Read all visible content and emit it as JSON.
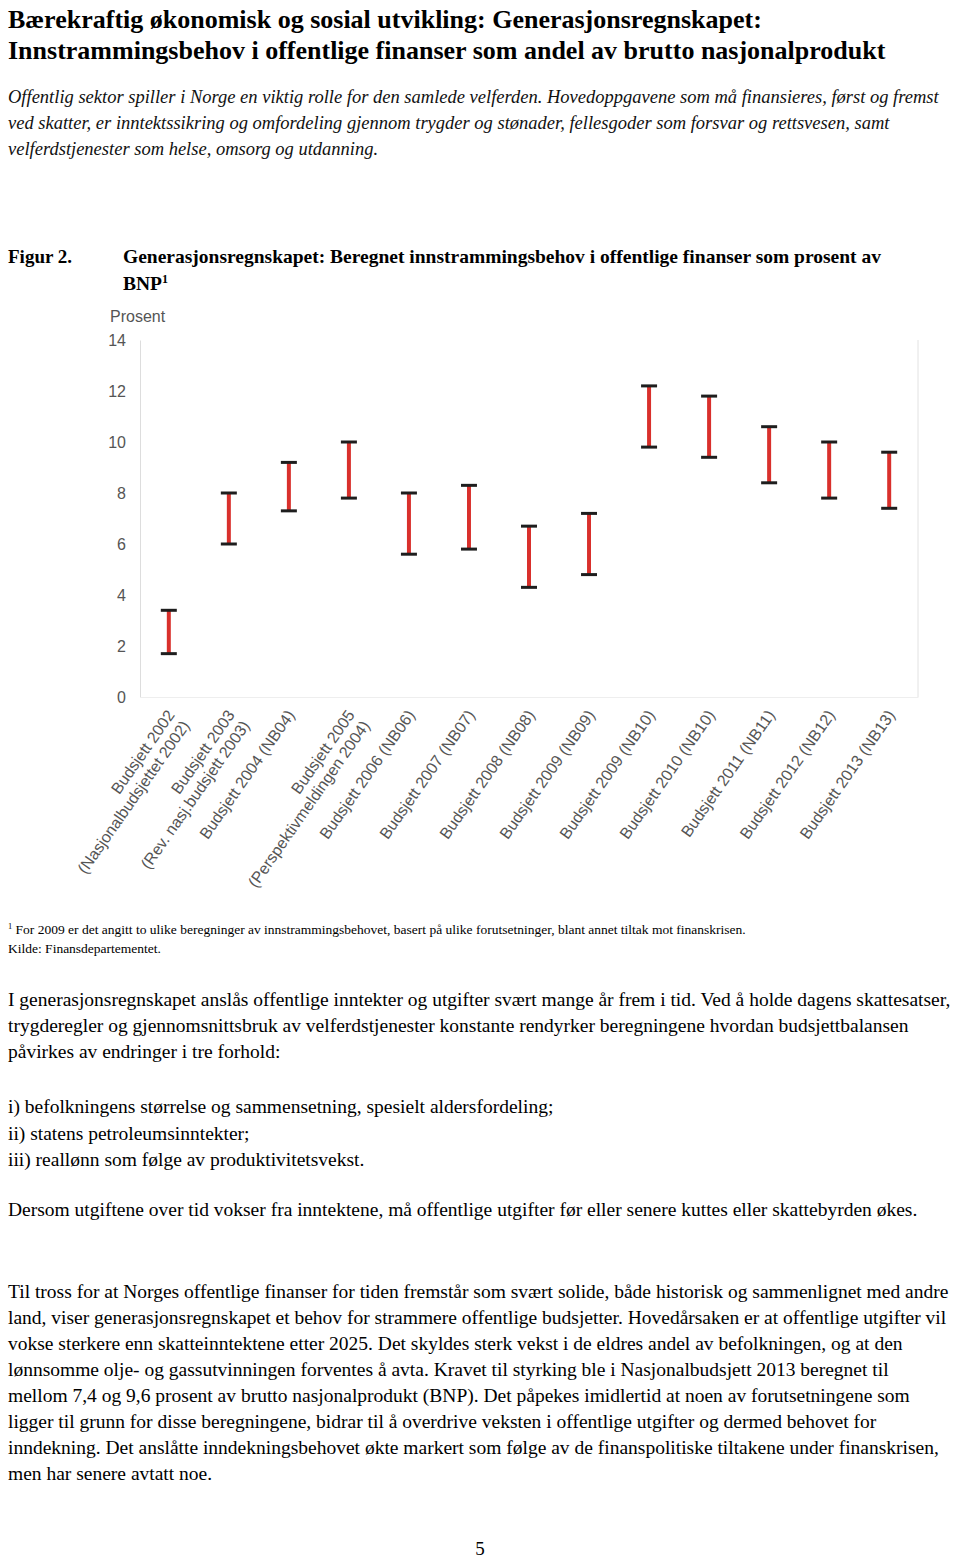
{
  "document": {
    "heading": "Bærekraftig økonomisk og sosial utvikling: Generasjonsregnskapet: Innstrammingsbehov i offentlige finanser som andel av brutto nasjonalprodukt",
    "intro": "Offentlig sektor spiller i Norge en viktig rolle for den samlede velferden. Hovedoppgavene som må finansieres, først og fremst ved skatter, er inntektssikring og omfordeling gjennom trygder og stønader, fellesgoder som forsvar og rettsvesen, samt velferdstjenester som helse, omsorg og utdanning.",
    "figure_label": "Figur 2.",
    "footnote_marker": "1",
    "footnote": "For 2009 er det angitt to ulike beregninger av innstrammingsbehovet, basert på ulike forutsetninger, blant annet tiltak mot finanskrisen.",
    "source": "Kilde: Finansdepartementet.",
    "paragraphs_before_list": [
      "I generasjonsregnskapet anslås offentlige inntekter og utgifter svært mange år frem i tid. Ved å holde dagens skattesatser, trygderegler og gjennomsnittsbruk av velferdstjenester konstante rendyrker beregningene hvordan budsjettbalansen påvirkes av endringer i tre forhold:"
    ],
    "list": [
      "i) befolkningens størrelse og sammensetning, spesielt aldersfordeling;",
      "ii) statens petroleumsinntekter;",
      "iii) reallønn som følge av produktivitetsvekst."
    ],
    "paragraphs_after_list": [
      "Dersom utgiftene over tid vokser fra inntektene, må offentlige utgifter før eller senere kuttes eller skattebyrden økes.",
      "Til tross for at Norges offentlige finanser for tiden fremstår som svært solide, både historisk og sammenlignet med andre land, viser generasjonsregnskapet et behov for strammere offentlige budsjetter. Hovedårsaken er at offentlige utgifter vil vokse sterkere enn skatteinntektene etter 2025. Det skyldes sterk vekst i de eldres andel av befolkningen, og at den lønnsomme olje- og gassutvinningen forventes å avta. Kravet til styrking ble i Nasjonalbudsjett 2013 beregnet til mellom 7,4 og 9,6 prosent av brutto nasjonalprodukt (BNP). Det påpekes imidlertid at noen av forutsetningene som ligger til grunn for disse beregningene, bidrar til å overdrive veksten i offentlige utgifter og dermed behovet for inndekning. Det anslåtte inndekningsbehovet økte markert som følge av de finanspolitiske tiltakene under finanskrisen, men har senere avtatt noe."
    ],
    "page_number": "5"
  },
  "chart_data": {
    "type": "range",
    "title": "Generasjonsregnskapet: Beregnet innstrammingsbehov i offentlige finanser som prosent av BNP",
    "title_footnote_marker": "1",
    "y_label": "Prosent",
    "categories": [
      "Budsjett 2002\n(Nasjonalbudsjettet 2002)",
      "Budsjett 2003\n(Rev. nasj.budsjett 2003)",
      "Budsjett 2004 (NB04)",
      "Budsjett 2005\n(Perspektivmeldingen 2004)",
      "Budsjett 2006 (NB06)",
      "Budsjett 2007 (NB07)",
      "Budsjett 2008 (NB08)",
      "Budsjett 2009 (NB09)",
      "Budsjett 2009 (NB10)",
      "Budsjett 2010 (NB10)",
      "Budsjett 2011 (NB11)",
      "Budsjett 2012 (NB12)",
      "Budsjett 2013 (NB13)"
    ],
    "low": [
      1.7,
      6.0,
      7.3,
      7.8,
      5.6,
      5.8,
      4.3,
      4.8,
      9.8,
      9.4,
      8.4,
      7.8,
      7.4
    ],
    "high": [
      3.4,
      8.0,
      9.2,
      10.0,
      8.0,
      8.3,
      6.7,
      7.2,
      12.2,
      11.8,
      10.6,
      10.0,
      9.6
    ],
    "color": "#d9302c",
    "ylim": [
      0,
      14
    ],
    "yticks": [
      0,
      2,
      4,
      6,
      8,
      10,
      12,
      14
    ],
    "grid": false
  }
}
